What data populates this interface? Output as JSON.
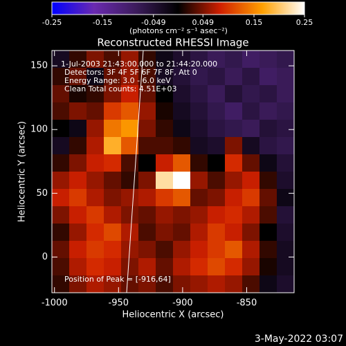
{
  "chart_data": {
    "type": "heatmap",
    "title": "Reconstructed RHESSI Image",
    "x_label": "Heliocentric X (arcsec)",
    "y_label": "Heliocentric Y (arcsec)",
    "colorbar_label": "(photons cm⁻² s⁻¹ asec⁻²)",
    "zlim": [
      -0.25,
      0.25
    ],
    "zticks": [
      -0.25,
      -0.15,
      -0.049,
      0.049,
      0.15,
      0.25
    ],
    "colors": [
      "#0000ff",
      "#6a2ab0",
      "#3c1c5c",
      "#000000",
      "#d02000",
      "#ffa000",
      "#ffffff"
    ],
    "xlim": [
      -1002,
      -813
    ],
    "ylim": [
      -28,
      162
    ],
    "xticks": [
      -1000,
      -950,
      -900,
      -850
    ],
    "yticks": [
      0,
      50,
      100,
      150
    ],
    "annotations": [
      "1-Jul-2003 21:43:00.000 to 21:44:20.000",
      "Detectors: 3F 4F 5F 6F 7F 8F, Att 0",
      "Energy Range: 3.0 - 6.0 keV",
      "Clean     Total counts: 4.51E+03",
      "Position of Peak = [-916,64]"
    ],
    "footer": "3-May-2022 03:07",
    "z": [
      [
        -0.03,
        0.02,
        0.05,
        0.03,
        0.06,
        0.02,
        -0.02,
        -0.04,
        -0.06,
        -0.08,
        -0.07,
        -0.09,
        -0.08,
        -0.07
      ],
      [
        0.02,
        0.04,
        -0.02,
        0.04,
        0.06,
        0.03,
        -0.03,
        -0.05,
        -0.07,
        -0.06,
        -0.08,
        -0.06,
        -0.09,
        -0.08
      ],
      [
        0.04,
        0.01,
        0.02,
        0.05,
        0.08,
        0.04,
        0.0,
        -0.04,
        -0.06,
        -0.08,
        -0.05,
        -0.07,
        -0.06,
        -0.08
      ],
      [
        0.03,
        0.05,
        0.04,
        0.1,
        0.12,
        0.06,
        0.01,
        -0.03,
        -0.05,
        -0.07,
        -0.09,
        -0.06,
        -0.08,
        -0.07
      ],
      [
        0.0,
        -0.02,
        0.06,
        0.14,
        0.16,
        0.05,
        0.02,
        -0.02,
        -0.04,
        -0.06,
        -0.07,
        -0.08,
        -0.05,
        -0.06
      ],
      [
        -0.03,
        0.02,
        0.07,
        0.18,
        0.12,
        0.03,
        0.03,
        0.02,
        -0.03,
        -0.04,
        0.05,
        -0.03,
        -0.06,
        -0.07
      ],
      [
        0.02,
        0.05,
        0.08,
        0.09,
        0.03,
        0.0,
        0.08,
        0.12,
        0.02,
        0.0,
        0.09,
        0.04,
        -0.02,
        -0.05
      ],
      [
        0.06,
        0.08,
        0.06,
        0.04,
        0.02,
        0.05,
        0.22,
        0.25,
        0.06,
        0.03,
        0.06,
        0.08,
        0.02,
        -0.04
      ],
      [
        0.08,
        0.1,
        0.07,
        0.05,
        0.06,
        0.07,
        0.1,
        0.12,
        0.04,
        0.05,
        0.08,
        0.1,
        0.04,
        -0.02
      ],
      [
        0.05,
        0.08,
        0.1,
        0.07,
        0.05,
        0.04,
        0.06,
        0.05,
        0.06,
        0.08,
        0.09,
        0.07,
        0.03,
        -0.05
      ],
      [
        0.02,
        0.06,
        0.09,
        0.11,
        0.07,
        0.03,
        0.05,
        0.04,
        0.07,
        0.1,
        0.08,
        0.05,
        0.0,
        -0.04
      ],
      [
        0.04,
        0.08,
        0.1,
        0.09,
        0.06,
        0.05,
        0.03,
        0.06,
        0.08,
        0.1,
        0.12,
        0.07,
        0.02,
        -0.03
      ],
      [
        0.03,
        0.07,
        0.09,
        0.08,
        0.05,
        0.07,
        0.04,
        0.07,
        0.09,
        0.11,
        0.09,
        0.06,
        0.01,
        -0.03
      ],
      [
        0.02,
        0.05,
        0.07,
        0.06,
        0.04,
        0.05,
        0.03,
        0.05,
        0.06,
        0.07,
        0.06,
        0.03,
        -0.02,
        -0.04
      ]
    ]
  }
}
